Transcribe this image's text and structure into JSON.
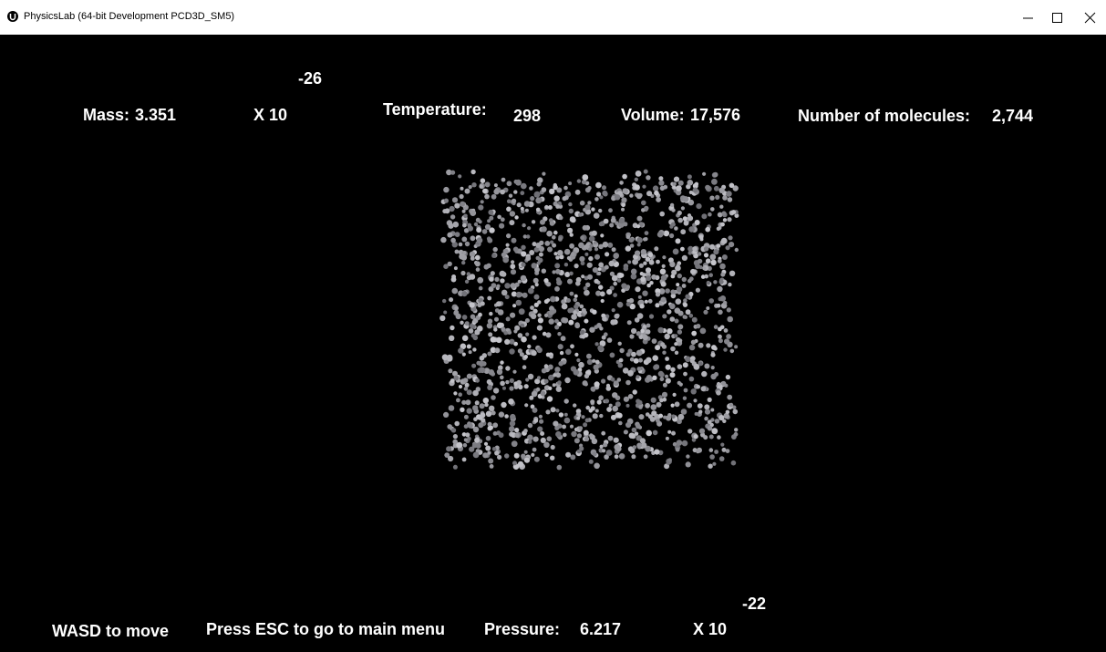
{
  "window": {
    "title": "PhysicsLab (64-bit Development PCD3D_SM5)"
  },
  "hud": {
    "mass": {
      "label": "Mass:",
      "value": "3.351",
      "multiplier": "X 10",
      "exponent": "-26"
    },
    "temperature": {
      "label": "Temperature:",
      "value": "298"
    },
    "volume": {
      "label": "Volume:",
      "value": "17,576"
    },
    "molecules": {
      "label": "Number of molecules:",
      "value": "2,744"
    }
  },
  "footer": {
    "move_hint": "WASD to move",
    "menu_hint": "Press ESC to go to main menu",
    "pressure": {
      "label": "Pressure:",
      "value": "6.217",
      "multiplier": "X 10",
      "exponent": "-22"
    }
  }
}
